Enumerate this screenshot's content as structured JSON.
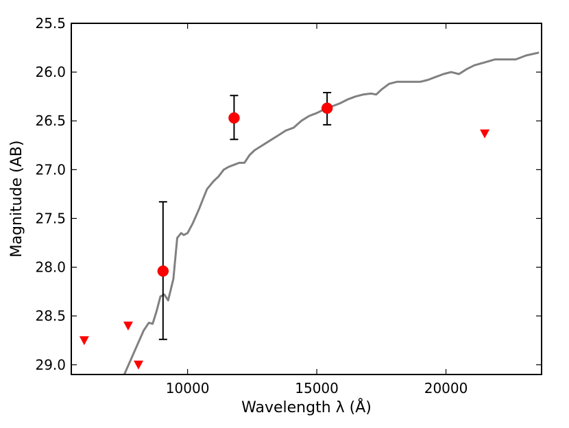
{
  "chart_data": {
    "type": "scatter",
    "title": "",
    "xlabel": "Wavelength  λ (Å)",
    "ylabel": "Magnitude (AB)",
    "xlim": [
      5500,
      23700
    ],
    "ylim": [
      29.1,
      25.5
    ],
    "y_inverted": true,
    "grid": false,
    "legend": "none",
    "xticks": [
      10000,
      15000,
      20000
    ],
    "xtick_labels": [
      "10000",
      "15000",
      "20000"
    ],
    "yticks": [
      25.5,
      26.0,
      26.5,
      27.0,
      27.5,
      28.0,
      28.5,
      29.0
    ],
    "ytick_labels": [
      "25.5",
      "26.0",
      "26.5",
      "27.0",
      "27.5",
      "28.0",
      "28.5",
      "29.0"
    ],
    "series": [
      {
        "type": "line",
        "color": "#808080",
        "x": [
          7550,
          7800,
          8050,
          8300,
          8500,
          8650,
          8800,
          8950,
          9100,
          9250,
          9450,
          9600,
          9750,
          9850,
          10000,
          10200,
          10450,
          10600,
          10750,
          11000,
          11200,
          11400,
          11600,
          11800,
          12000,
          12200,
          12400,
          12600,
          12900,
          13200,
          13500,
          13800,
          14100,
          14400,
          14700,
          15000,
          15300,
          15600,
          15900,
          16200,
          16500,
          16800,
          17100,
          17300,
          17500,
          17800,
          18100,
          18400,
          18700,
          19000,
          19300,
          19600,
          19900,
          20200,
          20500,
          20800,
          21100,
          21500,
          21900,
          22300,
          22700,
          23100,
          23600
        ],
        "y": [
          29.1,
          28.95,
          28.8,
          28.65,
          28.57,
          28.58,
          28.45,
          28.3,
          28.28,
          28.34,
          28.12,
          27.7,
          27.65,
          27.67,
          27.65,
          27.55,
          27.4,
          27.3,
          27.2,
          27.12,
          27.07,
          27.0,
          26.97,
          26.95,
          26.93,
          26.93,
          26.85,
          26.8,
          26.75,
          26.7,
          26.65,
          26.6,
          26.57,
          26.5,
          26.45,
          26.42,
          26.38,
          26.35,
          26.32,
          26.28,
          26.25,
          26.23,
          26.22,
          26.23,
          26.18,
          26.12,
          26.1,
          26.1,
          26.1,
          26.1,
          26.08,
          26.05,
          26.02,
          26.0,
          26.02,
          25.97,
          25.93,
          25.9,
          25.87,
          25.87,
          25.87,
          25.83,
          25.8
        ]
      },
      {
        "type": "scatter",
        "marker": "circle",
        "color": "#ff0000",
        "x": [
          9050,
          11800,
          15400
        ],
        "y": [
          28.04,
          26.47,
          26.37
        ],
        "err_low": [
          0.7,
          0.22,
          0.17
        ],
        "err_high": [
          0.71,
          0.23,
          0.16
        ]
      },
      {
        "type": "scatter",
        "marker": "triangle-down",
        "color": "#ff0000",
        "x": [
          6000,
          7700,
          8100,
          21500
        ],
        "y": [
          28.75,
          28.6,
          29.0,
          26.63
        ]
      }
    ]
  }
}
